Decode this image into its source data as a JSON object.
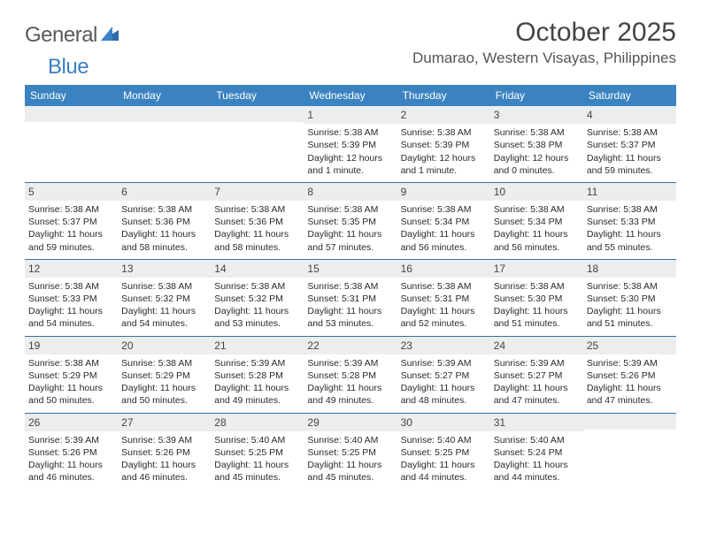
{
  "logo": {
    "text1": "General",
    "text2": "Blue"
  },
  "title": "October 2025",
  "location": "Dumarao, Western Visayas, Philippines",
  "colors": {
    "header_bg": "#3b83c0",
    "header_text": "#ffffff",
    "date_bar_bg": "#eceded",
    "week_border": "#3b6f9e",
    "logo_gray": "#5a5a5a",
    "logo_blue": "#3b7fbf"
  },
  "day_names": [
    "Sunday",
    "Monday",
    "Tuesday",
    "Wednesday",
    "Thursday",
    "Friday",
    "Saturday"
  ],
  "weeks": [
    [
      null,
      null,
      null,
      {
        "d": "1",
        "sr": "5:38 AM",
        "ss": "5:39 PM",
        "dl": "12 hours and 1 minute."
      },
      {
        "d": "2",
        "sr": "5:38 AM",
        "ss": "5:39 PM",
        "dl": "12 hours and 1 minute."
      },
      {
        "d": "3",
        "sr": "5:38 AM",
        "ss": "5:38 PM",
        "dl": "12 hours and 0 minutes."
      },
      {
        "d": "4",
        "sr": "5:38 AM",
        "ss": "5:37 PM",
        "dl": "11 hours and 59 minutes."
      }
    ],
    [
      {
        "d": "5",
        "sr": "5:38 AM",
        "ss": "5:37 PM",
        "dl": "11 hours and 59 minutes."
      },
      {
        "d": "6",
        "sr": "5:38 AM",
        "ss": "5:36 PM",
        "dl": "11 hours and 58 minutes."
      },
      {
        "d": "7",
        "sr": "5:38 AM",
        "ss": "5:36 PM",
        "dl": "11 hours and 58 minutes."
      },
      {
        "d": "8",
        "sr": "5:38 AM",
        "ss": "5:35 PM",
        "dl": "11 hours and 57 minutes."
      },
      {
        "d": "9",
        "sr": "5:38 AM",
        "ss": "5:34 PM",
        "dl": "11 hours and 56 minutes."
      },
      {
        "d": "10",
        "sr": "5:38 AM",
        "ss": "5:34 PM",
        "dl": "11 hours and 56 minutes."
      },
      {
        "d": "11",
        "sr": "5:38 AM",
        "ss": "5:33 PM",
        "dl": "11 hours and 55 minutes."
      }
    ],
    [
      {
        "d": "12",
        "sr": "5:38 AM",
        "ss": "5:33 PM",
        "dl": "11 hours and 54 minutes."
      },
      {
        "d": "13",
        "sr": "5:38 AM",
        "ss": "5:32 PM",
        "dl": "11 hours and 54 minutes."
      },
      {
        "d": "14",
        "sr": "5:38 AM",
        "ss": "5:32 PM",
        "dl": "11 hours and 53 minutes."
      },
      {
        "d": "15",
        "sr": "5:38 AM",
        "ss": "5:31 PM",
        "dl": "11 hours and 53 minutes."
      },
      {
        "d": "16",
        "sr": "5:38 AM",
        "ss": "5:31 PM",
        "dl": "11 hours and 52 minutes."
      },
      {
        "d": "17",
        "sr": "5:38 AM",
        "ss": "5:30 PM",
        "dl": "11 hours and 51 minutes."
      },
      {
        "d": "18",
        "sr": "5:38 AM",
        "ss": "5:30 PM",
        "dl": "11 hours and 51 minutes."
      }
    ],
    [
      {
        "d": "19",
        "sr": "5:38 AM",
        "ss": "5:29 PM",
        "dl": "11 hours and 50 minutes."
      },
      {
        "d": "20",
        "sr": "5:38 AM",
        "ss": "5:29 PM",
        "dl": "11 hours and 50 minutes."
      },
      {
        "d": "21",
        "sr": "5:39 AM",
        "ss": "5:28 PM",
        "dl": "11 hours and 49 minutes."
      },
      {
        "d": "22",
        "sr": "5:39 AM",
        "ss": "5:28 PM",
        "dl": "11 hours and 49 minutes."
      },
      {
        "d": "23",
        "sr": "5:39 AM",
        "ss": "5:27 PM",
        "dl": "11 hours and 48 minutes."
      },
      {
        "d": "24",
        "sr": "5:39 AM",
        "ss": "5:27 PM",
        "dl": "11 hours and 47 minutes."
      },
      {
        "d": "25",
        "sr": "5:39 AM",
        "ss": "5:26 PM",
        "dl": "11 hours and 47 minutes."
      }
    ],
    [
      {
        "d": "26",
        "sr": "5:39 AM",
        "ss": "5:26 PM",
        "dl": "11 hours and 46 minutes."
      },
      {
        "d": "27",
        "sr": "5:39 AM",
        "ss": "5:26 PM",
        "dl": "11 hours and 46 minutes."
      },
      {
        "d": "28",
        "sr": "5:40 AM",
        "ss": "5:25 PM",
        "dl": "11 hours and 45 minutes."
      },
      {
        "d": "29",
        "sr": "5:40 AM",
        "ss": "5:25 PM",
        "dl": "11 hours and 45 minutes."
      },
      {
        "d": "30",
        "sr": "5:40 AM",
        "ss": "5:25 PM",
        "dl": "11 hours and 44 minutes."
      },
      {
        "d": "31",
        "sr": "5:40 AM",
        "ss": "5:24 PM",
        "dl": "11 hours and 44 minutes."
      },
      null
    ]
  ],
  "labels": {
    "sunrise": "Sunrise: ",
    "sunset": "Sunset: ",
    "daylight": "Daylight: "
  }
}
